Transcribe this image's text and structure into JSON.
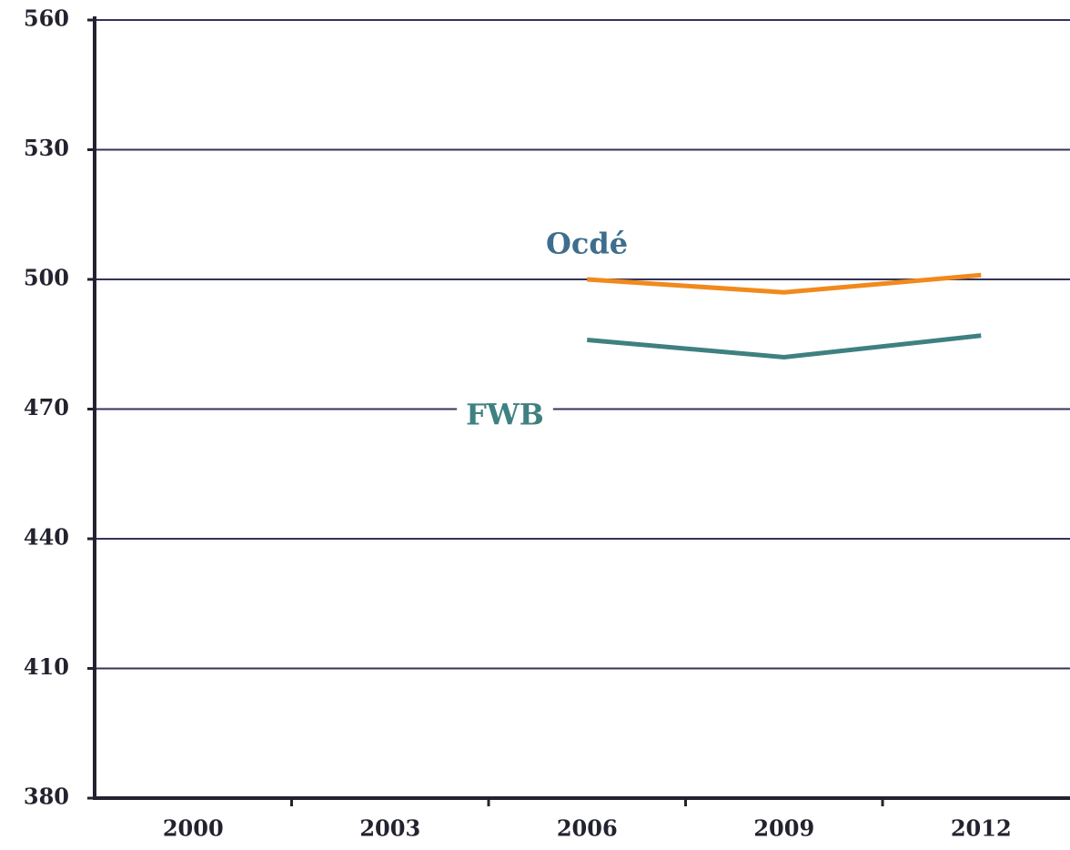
{
  "chart_data": {
    "type": "line",
    "categories": [
      "2000",
      "2003",
      "2006",
      "2009",
      "2012"
    ],
    "series": [
      {
        "name": "Ocdé",
        "color": "#f08a1d",
        "label_color": "#3e6e8e",
        "values": [
          null,
          null,
          500,
          497,
          501
        ]
      },
      {
        "name": "FWB",
        "color": "#3f8080",
        "label_color": "#3f8080",
        "values": [
          null,
          null,
          486,
          482,
          487
        ]
      }
    ],
    "ylim": [
      380,
      560
    ],
    "yticks": [
      380,
      410,
      440,
      470,
      500,
      530,
      560
    ],
    "grid": true
  }
}
